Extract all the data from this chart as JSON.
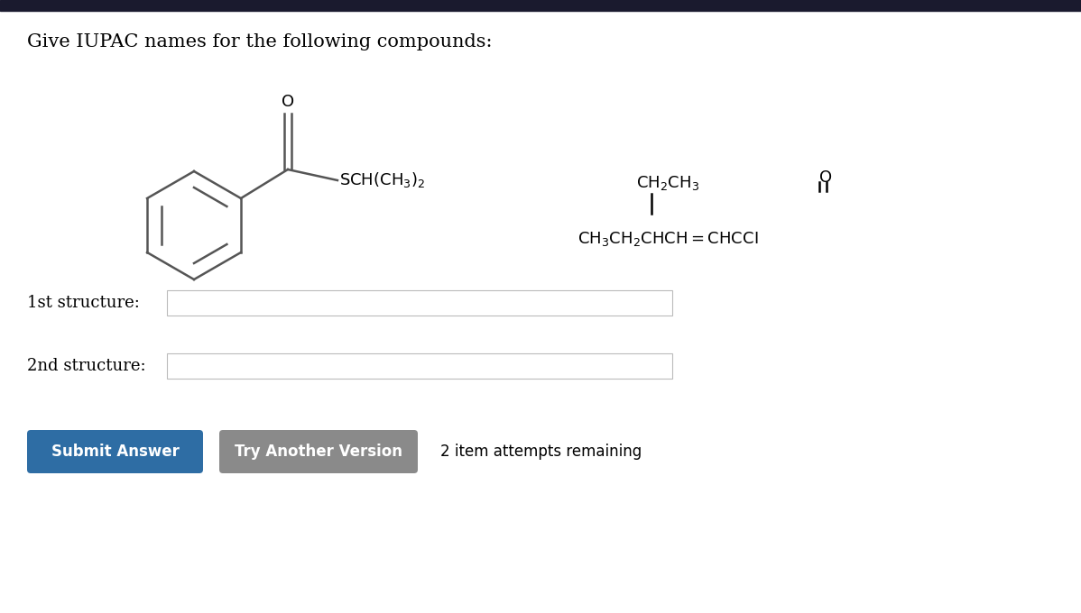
{
  "title": "Give IUPAC names for the following compounds:",
  "title_fontsize": 15,
  "bg_color": "#ffffff",
  "top_bar_color": "#1a1a2e",
  "label_1st": "1st structure:",
  "label_2nd": "2nd structure:",
  "btn_submit_color": "#2e6da4",
  "btn_try_color": "#8a8a8a",
  "btn_submit_text": "Submit Answer",
  "btn_try_text": "Try Another Version",
  "attempts_text": "2 item attempts remaining",
  "input_line_color": "#bbbbbb",
  "input_box_edge": "#bbbbbb"
}
